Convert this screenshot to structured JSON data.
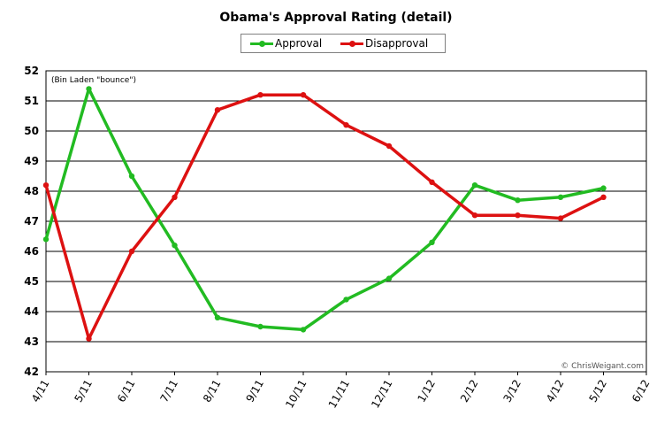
{
  "chart_data": {
    "type": "line",
    "title": "Obama's Approval Rating (detail)",
    "categories": [
      "4/11",
      "5/11",
      "6/11",
      "7/11",
      "8/11",
      "9/11",
      "10/11",
      "11/11",
      "12/11",
      "1/12",
      "2/12",
      "3/12",
      "4/12",
      "5/12",
      "6/12"
    ],
    "series": [
      {
        "name": "Approval",
        "color": "#22bb22",
        "values": [
          46.4,
          51.4,
          48.5,
          46.2,
          43.8,
          43.5,
          43.4,
          44.4,
          45.1,
          46.3,
          48.2,
          47.7,
          47.8,
          48.1,
          null
        ]
      },
      {
        "name": "Disapproval",
        "color": "#dd1111",
        "values": [
          48.2,
          43.1,
          46.0,
          47.8,
          50.7,
          51.2,
          51.2,
          50.2,
          49.5,
          48.3,
          47.2,
          47.2,
          47.1,
          47.8,
          null
        ]
      }
    ],
    "ylim": [
      42,
      52
    ],
    "yticks": [
      42,
      43,
      44,
      45,
      46,
      47,
      48,
      49,
      50,
      51,
      52
    ],
    "grid": true,
    "legend_position": "top-center",
    "annotation": "(Bin Laden \"bounce\")",
    "credit": "© ChrisWeigant.com"
  }
}
